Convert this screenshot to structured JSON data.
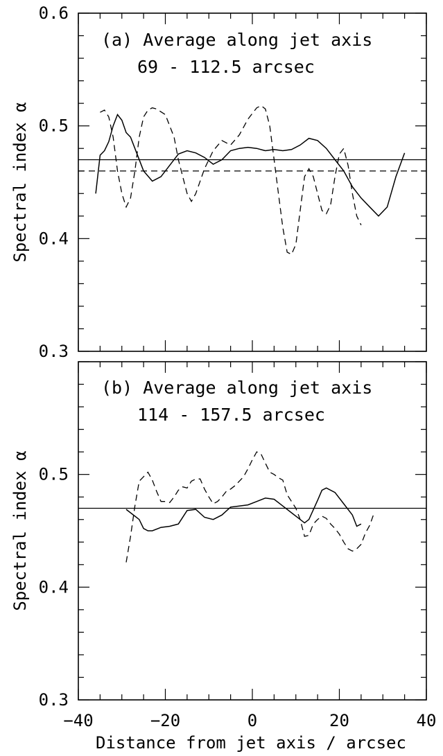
{
  "chart_data": [
    {
      "type": "line",
      "panel": "a",
      "annotation_lines": [
        "(a) Average along jet axis",
        "69 - 112.5 arcsec"
      ],
      "xlabel": "",
      "ylabel": "Spectral index α",
      "xlim": [
        -40,
        40
      ],
      "ylim": [
        0.3,
        0.6
      ],
      "xticks": [
        -40,
        -20,
        0,
        20,
        40
      ],
      "xtick_labels": [
        "",
        "",
        "",
        "",
        ""
      ],
      "yticks": [
        0.3,
        0.4,
        0.5,
        0.6
      ],
      "ytick_labels": [
        "0.3",
        "0.4",
        "0.5",
        "0.6"
      ],
      "hlines": [
        {
          "y": 0.47,
          "style": "solid"
        },
        {
          "y": 0.46,
          "style": "dashed"
        }
      ],
      "series": [
        {
          "style": "solid",
          "x": [
            -36.0,
            -35.0,
            -34.0,
            -33.0,
            -32.0,
            -31.0,
            -30.0,
            -29.0,
            -28.0,
            -27.0,
            -25.0,
            -23.0,
            -21.0,
            -19.0,
            -17.0,
            -15.0,
            -13.0,
            -11.0,
            -9.0,
            -7.0,
            -5.0,
            -3.0,
            -1.0,
            1.0,
            3.0,
            5.0,
            7.0,
            9.0,
            11.0,
            13.0,
            15.0,
            17.0,
            19.0,
            21.0,
            23.0,
            25.0,
            27.0,
            29.0,
            31.0,
            33.0,
            35.0
          ],
          "y": [
            0.44,
            0.474,
            0.478,
            0.486,
            0.5,
            0.51,
            0.505,
            0.494,
            0.49,
            0.48,
            0.46,
            0.451,
            0.455,
            0.465,
            0.475,
            0.478,
            0.476,
            0.472,
            0.466,
            0.47,
            0.478,
            0.48,
            0.481,
            0.48,
            0.478,
            0.479,
            0.478,
            0.479,
            0.483,
            0.489,
            0.487,
            0.48,
            0.47,
            0.46,
            0.446,
            0.436,
            0.428,
            0.42,
            0.428,
            0.455,
            0.476
          ]
        },
        {
          "style": "dashed",
          "x": [
            -35.0,
            -34.0,
            -33.0,
            -32.0,
            -31.0,
            -30.0,
            -29.0,
            -28.0,
            -27.0,
            -26.0,
            -25.0,
            -24.0,
            -23.0,
            -22.0,
            -20.0,
            -19.0,
            -18.0,
            -17.0,
            -15.0,
            -14.0,
            -13.0,
            -11.0,
            -9.0,
            -7.0,
            -5.0,
            -3.0,
            -1.0,
            1.0,
            2.0,
            3.0,
            4.0,
            5.0,
            6.0,
            7.0,
            8.0,
            9.0,
            10.0,
            11.0,
            12.0,
            13.0,
            14.0,
            15.0,
            16.0,
            17.0,
            18.0,
            19.0,
            20.0,
            21.0,
            22.0,
            23.0,
            24.0,
            25.0
          ],
          "y": [
            0.512,
            0.514,
            0.508,
            0.49,
            0.46,
            0.44,
            0.428,
            0.436,
            0.46,
            0.49,
            0.508,
            0.514,
            0.516,
            0.515,
            0.51,
            0.5,
            0.49,
            0.47,
            0.44,
            0.433,
            0.44,
            0.462,
            0.478,
            0.487,
            0.483,
            0.492,
            0.506,
            0.516,
            0.518,
            0.515,
            0.5,
            0.47,
            0.44,
            0.41,
            0.388,
            0.386,
            0.395,
            0.425,
            0.455,
            0.462,
            0.455,
            0.44,
            0.425,
            0.422,
            0.43,
            0.455,
            0.475,
            0.48,
            0.465,
            0.44,
            0.42,
            0.412
          ]
        }
      ]
    },
    {
      "type": "line",
      "panel": "b",
      "annotation_lines": [
        "(b) Average along jet axis",
        "114 - 157.5 arcsec"
      ],
      "xlabel": "Distance from jet axis / arcsec",
      "ylabel": "Spectral index α",
      "xlim": [
        -40,
        40
      ],
      "ylim": [
        0.3,
        0.6
      ],
      "xticks": [
        -40,
        -20,
        0,
        20,
        40
      ],
      "xtick_labels": [
        "−40",
        "−20",
        "0",
        "20",
        "40"
      ],
      "yticks": [
        0.3,
        0.4,
        0.5
      ],
      "ytick_labels": [
        "0.3",
        "0.4",
        "0.5"
      ],
      "hlines": [
        {
          "y": 0.47,
          "style": "solid"
        }
      ],
      "series": [
        {
          "style": "solid",
          "x": [
            -29.0,
            -27.0,
            -26.0,
            -25.0,
            -24.0,
            -23.0,
            -21.0,
            -19.0,
            -17.0,
            -15.0,
            -13.0,
            -11.0,
            -9.0,
            -7.0,
            -5.0,
            -3.0,
            -1.0,
            1.0,
            3.0,
            5.0,
            7.0,
            9.0,
            11.0,
            12.0,
            13.0,
            15.0,
            16.0,
            17.0,
            19.0,
            21.0,
            23.0,
            24.0,
            25.0
          ],
          "y": [
            0.469,
            0.463,
            0.46,
            0.452,
            0.45,
            0.45,
            0.453,
            0.454,
            0.456,
            0.468,
            0.469,
            0.462,
            0.46,
            0.464,
            0.471,
            0.472,
            0.473,
            0.476,
            0.479,
            0.478,
            0.472,
            0.466,
            0.46,
            0.457,
            0.46,
            0.477,
            0.486,
            0.488,
            0.484,
            0.474,
            0.464,
            0.454,
            0.456
          ]
        },
        {
          "style": "dashed",
          "x": [
            -29.0,
            -28.0,
            -27.0,
            -26.0,
            -25.0,
            -24.0,
            -23.0,
            -22.0,
            -21.0,
            -20.0,
            -19.0,
            -18.0,
            -17.0,
            -16.0,
            -15.0,
            -14.0,
            -13.0,
            -12.0,
            -11.0,
            -10.0,
            -9.0,
            -8.0,
            -7.0,
            -6.0,
            -5.0,
            -4.0,
            -3.0,
            -2.0,
            -1.0,
            0.0,
            1.0,
            2.0,
            3.0,
            4.0,
            5.0,
            6.0,
            7.0,
            8.0,
            9.0,
            10.0,
            11.0,
            12.0,
            13.0,
            14.0,
            15.0,
            16.0,
            17.0,
            18.0,
            19.0,
            20.0,
            21.0,
            22.0,
            23.0,
            24.0,
            25.0,
            26.0,
            27.0,
            28.0
          ],
          "y": [
            0.422,
            0.445,
            0.472,
            0.494,
            0.498,
            0.502,
            0.495,
            0.485,
            0.476,
            0.476,
            0.475,
            0.48,
            0.486,
            0.489,
            0.488,
            0.494,
            0.496,
            0.496,
            0.487,
            0.48,
            0.474,
            0.476,
            0.48,
            0.485,
            0.487,
            0.49,
            0.494,
            0.498,
            0.505,
            0.513,
            0.52,
            0.518,
            0.51,
            0.502,
            0.5,
            0.497,
            0.495,
            0.482,
            0.476,
            0.47,
            0.46,
            0.445,
            0.446,
            0.456,
            0.46,
            0.463,
            0.461,
            0.456,
            0.452,
            0.447,
            0.44,
            0.434,
            0.432,
            0.434,
            0.438,
            0.448,
            0.455,
            0.466
          ]
        }
      ]
    }
  ]
}
